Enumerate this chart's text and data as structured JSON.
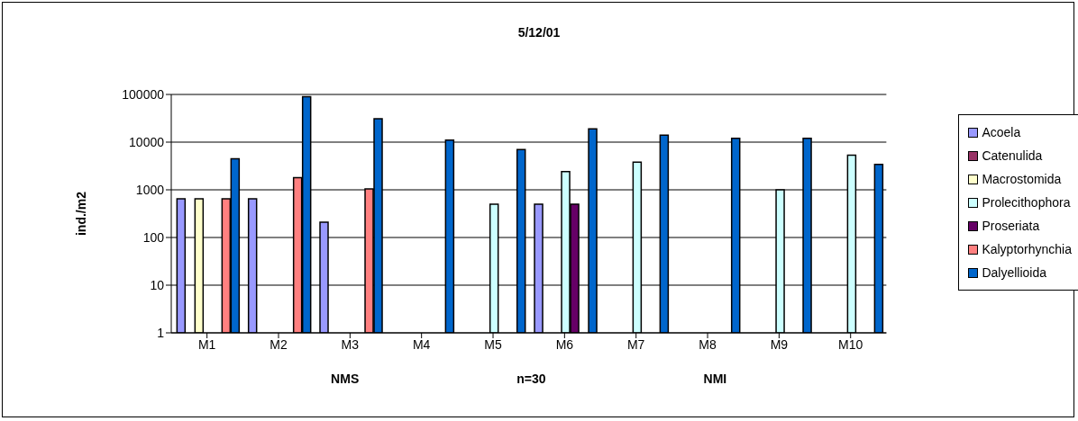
{
  "chart_data": {
    "type": "bar",
    "title": "5/12/01",
    "xlabel": "NMS                                             n=30                                             NMI",
    "ylabel": "ind./m2",
    "categories": [
      "M1",
      "M2",
      "M3",
      "M4",
      "M5",
      "M6",
      "M7",
      "M8",
      "M9",
      "M10"
    ],
    "series": [
      {
        "name": "Acoela",
        "color": "#9999ff",
        "values": [
          650,
          650,
          210,
          null,
          null,
          500,
          null,
          null,
          null,
          null
        ]
      },
      {
        "name": "Catenulida",
        "color": "#993366",
        "values": [
          null,
          null,
          null,
          null,
          null,
          null,
          null,
          null,
          null,
          null
        ]
      },
      {
        "name": "Macrostomida",
        "color": "#ffffcc",
        "values": [
          650,
          null,
          null,
          null,
          null,
          null,
          null,
          null,
          null,
          null
        ]
      },
      {
        "name": "Prolecithophora",
        "color": "#ccffff",
        "values": [
          null,
          null,
          null,
          null,
          500,
          2400,
          3800,
          null,
          1000,
          5300
        ]
      },
      {
        "name": "Proseriata",
        "color": "#660066",
        "values": [
          null,
          null,
          null,
          null,
          null,
          500,
          null,
          null,
          null,
          null
        ]
      },
      {
        "name": "Kalyptorhynchia",
        "color": "#ff8080",
        "values": [
          650,
          1800,
          1050,
          null,
          null,
          null,
          null,
          null,
          null,
          null
        ]
      },
      {
        "name": "Dalyellioida",
        "color": "#0066cc",
        "values": [
          4500,
          90000,
          31000,
          11000,
          7000,
          19000,
          14000,
          12000,
          12000,
          3400
        ]
      }
    ],
    "log": true,
    "ylim": [
      1,
      100000
    ],
    "yticks": [
      1,
      10,
      100,
      1000,
      10000,
      100000
    ],
    "grid": "y",
    "legend": "right"
  }
}
